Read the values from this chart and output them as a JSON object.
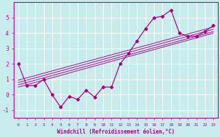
{
  "bg_color": "#c8ecec",
  "grid_color": "#ffffff",
  "line_color": "#aa0088",
  "xlabel": "Windchill (Refroidissement éolien,°C)",
  "xlim": [
    -0.5,
    23.5
  ],
  "ylim": [
    -1.5,
    6.0
  ],
  "yticks": [
    -1,
    0,
    1,
    2,
    3,
    4,
    5
  ],
  "xticks": [
    0,
    1,
    2,
    3,
    4,
    5,
    6,
    7,
    8,
    9,
    10,
    11,
    12,
    13,
    14,
    15,
    16,
    17,
    18,
    19,
    20,
    21,
    22,
    23
  ],
  "curve1_x": [
    0,
    1,
    2,
    3,
    4,
    5,
    6,
    7,
    8,
    9,
    10,
    11,
    12,
    13,
    14,
    15,
    16,
    17,
    18,
    19,
    20,
    21,
    22,
    23
  ],
  "curve1_y": [
    2.0,
    0.6,
    0.6,
    1.0,
    0.0,
    -0.8,
    -0.1,
    -0.3,
    0.3,
    -0.15,
    0.5,
    0.5,
    2.0,
    2.7,
    3.5,
    4.3,
    5.0,
    5.1,
    5.5,
    4.0,
    3.8,
    3.8,
    4.1,
    4.5
  ],
  "reg_line_x": [
    0,
    23
  ],
  "reg_lines_y": [
    [
      0.5,
      4.0
    ],
    [
      0.65,
      4.1
    ],
    [
      0.8,
      4.25
    ],
    [
      0.95,
      4.4
    ]
  ]
}
